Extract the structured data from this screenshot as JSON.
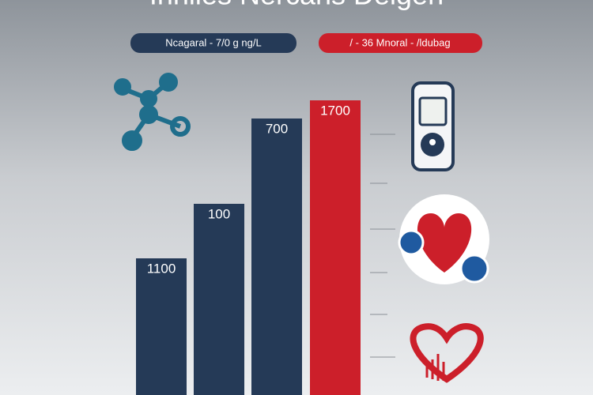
{
  "title": "Inhlies Nercans Deigen",
  "legend": [
    "Ncagaral - 7/0 g ng/L",
    "/ - 36 Mnoral - /ldubag"
  ],
  "bars": [
    {
      "label": "1100"
    },
    {
      "label": "100"
    },
    {
      "label": "700"
    },
    {
      "label": "1700"
    }
  ]
}
